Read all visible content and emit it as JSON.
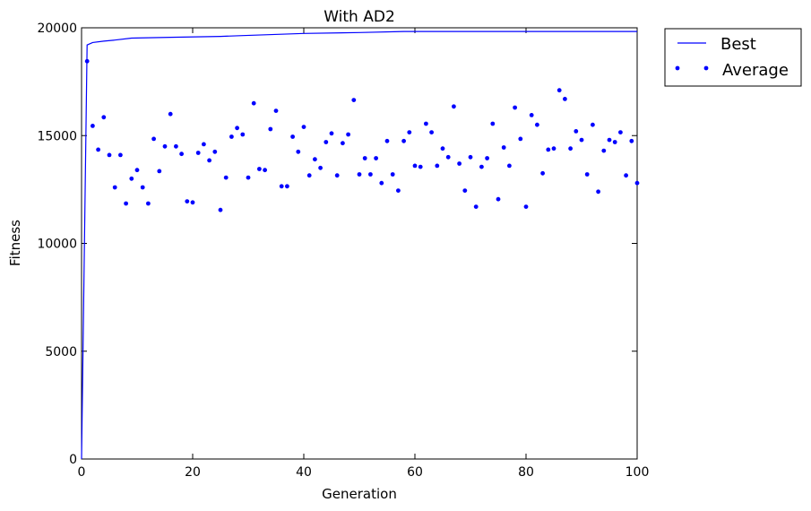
{
  "chart_data": {
    "type": "line",
    "title": "With AD2",
    "xlabel": "Generation",
    "ylabel": "Fitness",
    "xlim": [
      0,
      100
    ],
    "ylim": [
      0,
      20000
    ],
    "xticks": [
      0,
      20,
      40,
      60,
      80,
      100
    ],
    "yticks": [
      0,
      5000,
      10000,
      15000,
      20000
    ],
    "grid": false,
    "legend_position": "outside-top-right",
    "series": [
      {
        "name": "Best",
        "style": "line",
        "color": "#0000ff",
        "x": [
          0,
          1,
          2,
          4,
          6,
          9,
          16,
          25,
          29,
          40,
          50,
          58,
          100
        ],
        "y": [
          0,
          19200,
          19320,
          19380,
          19430,
          19520,
          19560,
          19600,
          19640,
          19740,
          19780,
          19830,
          19830
        ]
      },
      {
        "name": "Average",
        "style": "scatter",
        "color": "#0000ff",
        "x": [
          1,
          2,
          3,
          4,
          5,
          6,
          7,
          8,
          9,
          10,
          11,
          12,
          13,
          14,
          15,
          16,
          17,
          18,
          19,
          20,
          21,
          22,
          23,
          24,
          25,
          26,
          27,
          28,
          29,
          30,
          31,
          32,
          33,
          34,
          35,
          36,
          37,
          38,
          39,
          40,
          41,
          42,
          43,
          44,
          45,
          46,
          47,
          48,
          49,
          50,
          51,
          52,
          53,
          54,
          55,
          56,
          57,
          58,
          59,
          60,
          61,
          62,
          63,
          64,
          65,
          66,
          67,
          68,
          69,
          70,
          71,
          72,
          73,
          74,
          75,
          76,
          77,
          78,
          79,
          80,
          81,
          82,
          83,
          84,
          85,
          86,
          87,
          88,
          89,
          90,
          91,
          92,
          93,
          94,
          95,
          96,
          97,
          98,
          99,
          100
        ],
        "y": [
          18450,
          15450,
          14350,
          15850,
          14100,
          12600,
          14100,
          11850,
          13000,
          13400,
          12600,
          11850,
          14850,
          13350,
          14500,
          16000,
          14500,
          14150,
          11950,
          11900,
          14200,
          14600,
          13850,
          14250,
          11550,
          13050,
          14950,
          15350,
          15050,
          13050,
          16500,
          13450,
          13400,
          15300,
          16150,
          12650,
          12650,
          14950,
          14250,
          15400,
          13150,
          13900,
          13500,
          14700,
          15100,
          13150,
          14650,
          15050,
          16650,
          13200,
          13950,
          13200,
          13950,
          12800,
          14750,
          13200,
          12450,
          14750,
          15150,
          13600,
          13550,
          15550,
          15150,
          13600,
          14400,
          14000,
          16350,
          13700,
          12450,
          14000,
          11700,
          13550,
          13950,
          15550,
          12050,
          14450,
          13600,
          16300,
          14850,
          11700,
          15950,
          15500,
          13250,
          14350,
          14400,
          17100,
          16700,
          14400,
          15200,
          14800,
          13200,
          15500,
          12400,
          14300,
          14800,
          14700,
          15150,
          13150,
          14750,
          12800
        ]
      }
    ]
  }
}
